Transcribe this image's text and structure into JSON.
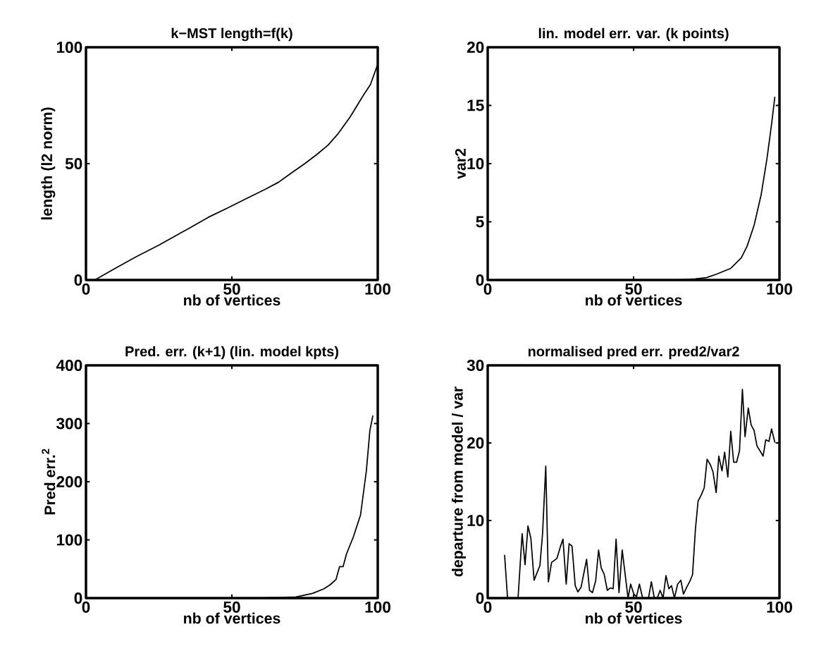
{
  "chart_data": [
    {
      "type": "line",
      "title": "k−MST length=f(k)",
      "xlabel": "nb of vertices",
      "ylabel": "length (l2 norm)",
      "color": "#000000",
      "xlim": [
        0,
        100
      ],
      "ylim": [
        0,
        100
      ],
      "xticks": [
        0,
        50,
        100
      ],
      "yticks": [
        0,
        50,
        100
      ],
      "x": [
        3,
        10,
        17.2,
        25,
        35,
        42,
        48.6,
        55,
        61.5,
        66,
        70.4,
        75,
        79.2,
        83,
        86.5,
        90.5,
        94.9,
        97.5,
        99.8
      ],
      "values": [
        0,
        5,
        10,
        15,
        22,
        27,
        31,
        35,
        39,
        42,
        46,
        50,
        54,
        58,
        63,
        70,
        79,
        84,
        92
      ]
    },
    {
      "type": "line",
      "title": "lin. model err. var. (k points)",
      "xlabel": "nb of vertices",
      "ylabel": "var2",
      "color": "#000000",
      "xlim": [
        0,
        100
      ],
      "ylim": [
        0,
        20
      ],
      "xticks": [
        0,
        50,
        100
      ],
      "yticks": [
        0,
        5,
        10,
        15,
        20
      ],
      "x": [
        40,
        55,
        65,
        71.2,
        75,
        78.4,
        83.3,
        86.9,
        88.9,
        91.3,
        93.7,
        95.7,
        97.3,
        98.4
      ],
      "values": [
        0,
        0,
        0,
        0.1,
        0.2,
        0.5,
        1.0,
        1.9,
        2.9,
        4.7,
        7.3,
        10.4,
        13.4,
        15.7
      ]
    },
    {
      "type": "line",
      "title": "Pred. err. (k+1) (lin. model kpts)",
      "xlabel": "nb of vertices",
      "ylabel": "Pred err.$^{2}$",
      "color": "#000000",
      "xlim": [
        0,
        100
      ],
      "ylim": [
        0,
        400
      ],
      "xticks": [
        0,
        50,
        100
      ],
      "yticks": [
        0,
        100,
        200,
        300,
        400
      ],
      "x": [
        60,
        72,
        77.6,
        81.6,
        83.7,
        85.7,
        86.9,
        88.1,
        89.3,
        91.7,
        94.1,
        96.1,
        97.3,
        98.3
      ],
      "values": [
        0,
        2,
        8,
        16,
        23,
        32,
        54,
        54,
        76,
        106,
        143,
        219,
        288,
        313
      ]
    },
    {
      "type": "line",
      "title": "normalised pred err. pred2/var2",
      "xlabel": "nb of vertices",
      "ylabel": "departure from model / var",
      "color": "#000000",
      "xlim": [
        0,
        100
      ],
      "ylim": [
        0,
        30
      ],
      "xticks": [
        0,
        50,
        100
      ],
      "yticks": [
        0,
        10,
        20,
        30
      ],
      "x": [
        5.8,
        6.8,
        10.4,
        11.8,
        12.8,
        13.8,
        14.8,
        15.9,
        17.9,
        18.8,
        19.9,
        20.8,
        21.9,
        23.7,
        24.9,
        25.8,
        26.9,
        27.9,
        28.9,
        30.0,
        30.9,
        32.0,
        33.9,
        34.9,
        35.9,
        37.0,
        38.0,
        38.9,
        39.9,
        41.0,
        42.0,
        43.0,
        44.0,
        45.0,
        46.1,
        48.1,
        49.0,
        50.1,
        51.0,
        52.0,
        53.1,
        55.1,
        56.1,
        57.1,
        58.1,
        59.1,
        60.1,
        61.1,
        62.1,
        63.0,
        64.0,
        65.1,
        66.2,
        67.1,
        68.2,
        69.2,
        70.2,
        71.2,
        72.1,
        73.2,
        74.2,
        75.2,
        76.3,
        77.2,
        78.3,
        79.2,
        80.3,
        81.2,
        82.3,
        83.3,
        84.3,
        85.3,
        86.3,
        87.3,
        88.2,
        89.3,
        90.3,
        91.3,
        92.3,
        93.3,
        94.4,
        95.3,
        96.4,
        97.3,
        98.4
      ],
      "values": [
        5.5,
        0,
        0,
        8.3,
        4.3,
        9.3,
        7.7,
        2.3,
        4.2,
        8.3,
        17.0,
        2.1,
        4.6,
        5.1,
        6.6,
        7.6,
        1.8,
        7.0,
        6.7,
        1.6,
        0.8,
        1.4,
        5.0,
        1.0,
        0.7,
        2.2,
        6.2,
        3.9,
        3.1,
        1.0,
        1.3,
        1.2,
        7.6,
        0.7,
        6.2,
        0,
        1.8,
        0.5,
        0.2,
        1.8,
        0,
        0,
        2.1,
        0,
        0,
        1.0,
        0,
        2.9,
        1.2,
        1.6,
        0,
        1.8,
        2.3,
        0.5,
        1.4,
        2.1,
        3.0,
        8.9,
        12.5,
        13.3,
        14.2,
        17.9,
        17.2,
        16.3,
        13.6,
        18.3,
        16.4,
        18.8,
        15.6,
        21.5,
        17.5,
        17.5,
        19.0,
        26.9,
        20.8,
        24.5,
        22.3,
        21.6,
        19.6,
        19.0,
        18.3,
        20.4,
        20.2,
        21.8,
        20.1
      ]
    }
  ]
}
